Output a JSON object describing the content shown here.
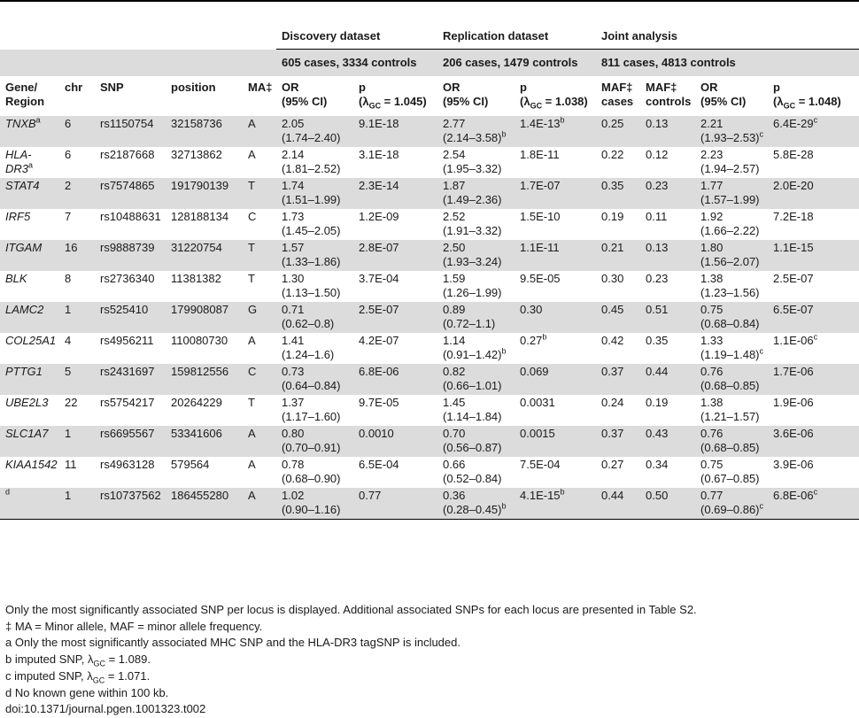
{
  "header": {
    "groups": [
      "Discovery dataset",
      "Replication dataset",
      "Joint analysis"
    ],
    "samples": [
      "605 cases, 3334 controls",
      "206 cases, 1479 controls",
      "811 cases, 4813 controls"
    ],
    "cols": {
      "gene": "Gene/ Region",
      "chr": "chr",
      "snp": "SNP",
      "position": "position",
      "ma": "MA‡",
      "or": "OR (95% CI)",
      "p_pre": "p",
      "p_disc": "(λGC = 1.045)",
      "p_rep": "(λGC = 1.038)",
      "p_joint": "(λGC = 1.048)",
      "maf_cases": "MAF‡ cases",
      "maf_controls": "MAF‡ controls"
    }
  },
  "rows": [
    {
      "gene": "TNXB",
      "gsup": "a",
      "chr": "6",
      "snp": "rs1150754",
      "pos": "32158736",
      "ma": "A",
      "d_or": "2.05",
      "d_ci": "(1.74–2.40)",
      "d_p": "9.1E-18",
      "r_or": "2.77",
      "r_ci": "(2.14–3.58)",
      "r_cisup": "b",
      "r_p": "1.4E-13",
      "r_psup": "b",
      "maf_c": "0.25",
      "maf_ct": "0.13",
      "j_or": "2.21",
      "j_ci": "(1.93–2.53)",
      "j_cisup": "c",
      "j_p": "6.4E-29",
      "j_psup": "c"
    },
    {
      "gene": "HLA-DR3",
      "gsup": "a",
      "chr": "6",
      "snp": "rs2187668",
      "pos": "32713862",
      "ma": "A",
      "d_or": "2.14",
      "d_ci": "(1.81–2.52)",
      "d_p": "3.1E-18",
      "r_or": "2.54",
      "r_ci": "(1.95–3.32)",
      "r_cisup": "",
      "r_p": "1.8E-11",
      "r_psup": "",
      "maf_c": "0.22",
      "maf_ct": "0.12",
      "j_or": "2.23",
      "j_ci": "(1.94–2.57)",
      "j_cisup": "",
      "j_p": "5.8E-28",
      "j_psup": ""
    },
    {
      "gene": "STAT4",
      "gsup": "",
      "chr": "2",
      "snp": "rs7574865",
      "pos": "191790139",
      "ma": "T",
      "d_or": "1.74",
      "d_ci": "(1.51–1.99)",
      "d_p": "2.3E-14",
      "r_or": "1.87",
      "r_ci": "(1.49–2.36)",
      "r_cisup": "",
      "r_p": "1.7E-07",
      "r_psup": "",
      "maf_c": "0.35",
      "maf_ct": "0.23",
      "j_or": "1.77",
      "j_ci": "(1.57–1.99)",
      "j_cisup": "",
      "j_p": "2.0E-20",
      "j_psup": ""
    },
    {
      "gene": "IRF5",
      "gsup": "",
      "chr": "7",
      "snp": "rs10488631",
      "pos": "128188134",
      "ma": "C",
      "d_or": "1.73",
      "d_ci": "(1.45–2.05)",
      "d_p": "1.2E-09",
      "r_or": "2.52",
      "r_ci": "(1.91–3.32)",
      "r_cisup": "",
      "r_p": "1.5E-10",
      "r_psup": "",
      "maf_c": "0.19",
      "maf_ct": "0.11",
      "j_or": "1.92",
      "j_ci": "(1.66–2.22)",
      "j_cisup": "",
      "j_p": "7.2E-18",
      "j_psup": ""
    },
    {
      "gene": "ITGAM",
      "gsup": "",
      "chr": "16",
      "snp": "rs9888739",
      "pos": "31220754",
      "ma": "T",
      "d_or": "1.57",
      "d_ci": "(1.33–1.86)",
      "d_p": "2.8E-07",
      "r_or": "2.50",
      "r_ci": "(1.93–3.24)",
      "r_cisup": "",
      "r_p": "1.1E-11",
      "r_psup": "",
      "maf_c": "0.21",
      "maf_ct": "0.13",
      "j_or": "1.80",
      "j_ci": "(1.56–2.07)",
      "j_cisup": "",
      "j_p": "1.1E-15",
      "j_psup": ""
    },
    {
      "gene": "BLK",
      "gsup": "",
      "chr": "8",
      "snp": "rs2736340",
      "pos": "11381382",
      "ma": "T",
      "d_or": "1.30",
      "d_ci": "(1.13–1.50)",
      "d_p": "3.7E-04",
      "r_or": "1.59",
      "r_ci": "(1.26–1.99)",
      "r_cisup": "",
      "r_p": "9.5E-05",
      "r_psup": "",
      "maf_c": "0.30",
      "maf_ct": "0.23",
      "j_or": "1.38",
      "j_ci": "(1.23–1.56)",
      "j_cisup": "",
      "j_p": "2.5E-07",
      "j_psup": ""
    },
    {
      "gene": "LAMC2",
      "gsup": "",
      "chr": "1",
      "snp": "rs525410",
      "pos": "179908087",
      "ma": "G",
      "d_or": "0.71",
      "d_ci": "(0.62–0.8)",
      "d_p": "2.5E-07",
      "r_or": "0.89",
      "r_ci": "(0.72–1.1)",
      "r_cisup": "",
      "r_p": "0.30",
      "r_psup": "",
      "maf_c": "0.45",
      "maf_ct": "0.51",
      "j_or": "0.75",
      "j_ci": "(0.68–0.84)",
      "j_cisup": "",
      "j_p": "6.5E-07",
      "j_psup": ""
    },
    {
      "gene": "COL25A1",
      "gsup": "",
      "chr": "4",
      "snp": "rs4956211",
      "pos": "110080730",
      "ma": "A",
      "d_or": "1.41",
      "d_ci": "(1.24–1.6)",
      "d_p": "4.2E-07",
      "r_or": "1.14",
      "r_ci": "(0.91–1.42)",
      "r_cisup": "b",
      "r_p": "0.27",
      "r_psup": "b",
      "maf_c": "0.42",
      "maf_ct": "0.35",
      "j_or": "1.33",
      "j_ci": "(1.19–1.48)",
      "j_cisup": "c",
      "j_p": "1.1E-06",
      "j_psup": "c"
    },
    {
      "gene": "PTTG1",
      "gsup": "",
      "chr": "5",
      "snp": "rs2431697",
      "pos": "159812556",
      "ma": "C",
      "d_or": "0.73",
      "d_ci": "(0.64–0.84)",
      "d_p": "6.8E-06",
      "r_or": "0.82",
      "r_ci": "(0.66–1.01)",
      "r_cisup": "",
      "r_p": "0.069",
      "r_psup": "",
      "maf_c": "0.37",
      "maf_ct": "0.44",
      "j_or": "0.76",
      "j_ci": "(0.68–0.85)",
      "j_cisup": "",
      "j_p": "1.7E-06",
      "j_psup": ""
    },
    {
      "gene": "UBE2L3",
      "gsup": "",
      "chr": "22",
      "snp": "rs5754217",
      "pos": "20264229",
      "ma": "T",
      "d_or": "1.37",
      "d_ci": "(1.17–1.60)",
      "d_p": "9.7E-05",
      "r_or": "1.45",
      "r_ci": "(1.14–1.84)",
      "r_cisup": "",
      "r_p": "0.0031",
      "r_psup": "",
      "maf_c": "0.24",
      "maf_ct": "0.19",
      "j_or": "1.38",
      "j_ci": "(1.21–1.57)",
      "j_cisup": "",
      "j_p": "1.9E-06",
      "j_psup": ""
    },
    {
      "gene": "SLC1A7",
      "gsup": "",
      "chr": "1",
      "snp": "rs6695567",
      "pos": "53341606",
      "ma": "A",
      "d_or": "0.80",
      "d_ci": "(0.70–0.91)",
      "d_p": "0.0010",
      "r_or": "0.70",
      "r_ci": "(0.56–0.87)",
      "r_cisup": "",
      "r_p": "0.0015",
      "r_psup": "",
      "maf_c": "0.37",
      "maf_ct": "0.43",
      "j_or": "0.76",
      "j_ci": "(0.68–0.85)",
      "j_cisup": "",
      "j_p": "3.6E-06",
      "j_psup": ""
    },
    {
      "gene": "KIAA1542",
      "gsup": "",
      "chr": "11",
      "snp": "rs4963128",
      "pos": "579564",
      "ma": "A",
      "d_or": "0.78",
      "d_ci": "(0.68–0.90)",
      "d_p": "6.5E-04",
      "r_or": "0.66",
      "r_ci": "(0.52–0.84)",
      "r_cisup": "",
      "r_p": "7.5E-04",
      "r_psup": "",
      "maf_c": "0.27",
      "maf_ct": "0.34",
      "j_or": "0.75",
      "j_ci": "(0.67–0.85)",
      "j_cisup": "",
      "j_p": "3.9E-06",
      "j_psup": ""
    },
    {
      "gene": "",
      "gsup": "d",
      "chr": "1",
      "snp": "rs10737562",
      "pos": "186455280",
      "ma": "A",
      "d_or": "1.02",
      "d_ci": "(0.90–1.16)",
      "d_p": "0.77",
      "r_or": "0.36",
      "r_ci": "(0.28–0.45)",
      "r_cisup": "b",
      "r_p": "4.1E-15",
      "r_psup": "b",
      "maf_c": "0.44",
      "maf_ct": "0.50",
      "j_or": "0.77",
      "j_ci": "(0.69–0.86)",
      "j_cisup": "c",
      "j_p": "6.8E-06",
      "j_psup": "c"
    }
  ],
  "notes": [
    "Only the most significantly associated SNP per locus is displayed. Additional associated SNPs for each locus are presented in Table S2.",
    "‡ MA = Minor allele, MAF =  minor allele frequency.",
    "a Only the most significantly associated MHC SNP and the HLA-DR3 tagSNP is included.",
    "b imputed SNP, λGC = 1.089.",
    "c imputed SNP, λGC = 1.071.",
    "d No known gene within 100 kb.",
    "doi:10.1371/journal.pgen.1001323.t002"
  ]
}
